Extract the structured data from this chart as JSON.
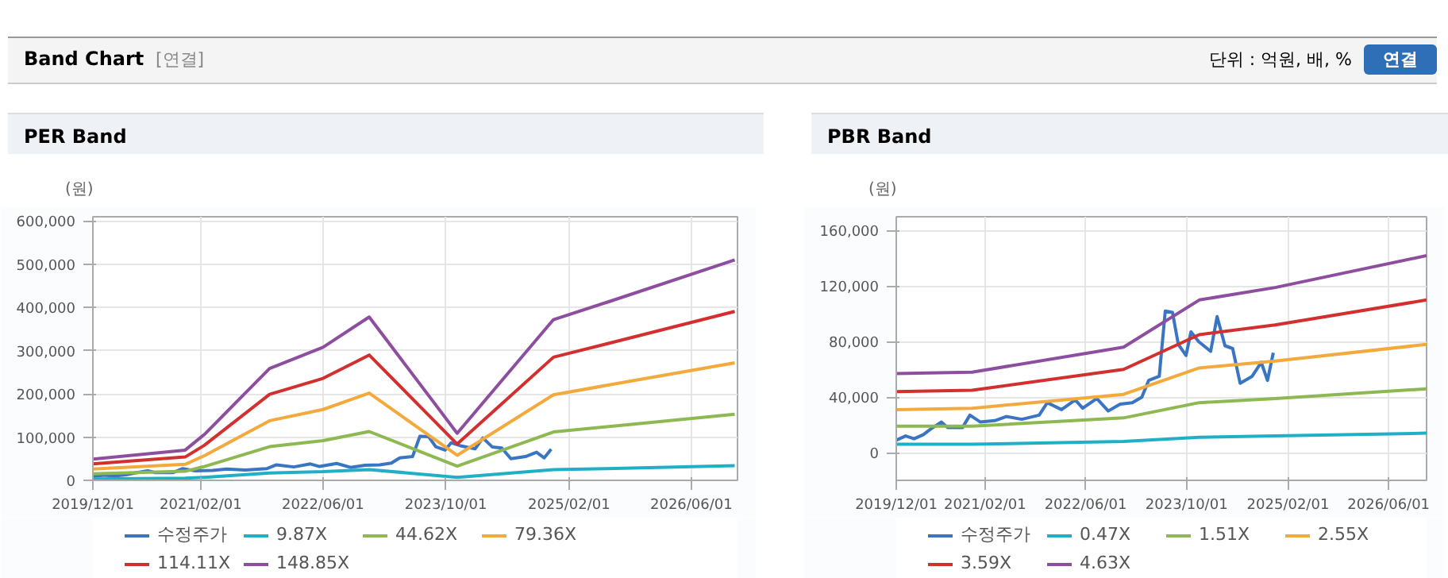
{
  "chart_data": [
    {
      "type": "line",
      "title": "PER Band",
      "ylabel": "(원)",
      "annotations": [
        "Band Chart",
        "[연결]",
        "단위 : 억원, 배, %",
        "연결"
      ],
      "xlim": [
        "2019-12-01",
        "2026-12-01"
      ],
      "ylim": [
        0,
        610000
      ],
      "xticks": [
        {
          "value": "2019-12-01",
          "label": "2019/12/01"
        },
        {
          "value": "2021-02-01",
          "label": "2021/02/01"
        },
        {
          "value": "2022-06-01",
          "label": "2022/06/01"
        },
        {
          "value": "2023-10-01",
          "label": "2023/10/01"
        },
        {
          "value": "2025-02-01",
          "label": "2025/02/01"
        },
        {
          "value": "2026-06-01",
          "label": "2026/06/01"
        }
      ],
      "yticks": [
        0,
        {
          "value": 100000,
          "label": "100,000"
        },
        {
          "value": 200000,
          "label": "200,000"
        },
        {
          "value": 300000,
          "label": "300,000"
        },
        {
          "value": 400000,
          "label": "400,000"
        },
        {
          "value": 500000,
          "label": "500,000"
        },
        {
          "value": 600000,
          "label": "600,000"
        }
      ],
      "grid": true,
      "legend": "bottom",
      "marker": "none",
      "line_style": "solid",
      "series": [
        {
          "name": "수정주가",
          "color": "#3a75c4",
          "x": [
            "2019-12-01",
            "2020-01-15",
            "2020-02-25",
            "2020-04-10",
            "2020-05-15",
            "2020-07-05",
            "2020-08-05",
            "2020-10-15",
            "2020-11-20",
            "2021-01-10",
            "2021-03-20",
            "2021-05-15",
            "2021-07-28",
            "2021-10-20",
            "2021-11-28",
            "2022-02-05",
            "2022-04-12",
            "2022-05-18",
            "2022-07-25",
            "2022-09-18",
            "2022-11-15",
            "2023-01-12",
            "2023-02-27",
            "2023-04-01",
            "2023-05-22",
            "2023-06-20",
            "2023-07-25",
            "2023-08-22",
            "2023-09-28",
            "2023-10-22",
            "2023-11-28",
            "2024-01-25",
            "2024-02-25",
            "2024-04-03",
            "2024-05-10",
            "2024-06-15",
            "2024-08-12",
            "2024-09-25",
            "2024-10-25",
            "2024-11-22"
          ],
          "values": [
            9000,
            12000,
            10000,
            13000,
            17000,
            22000,
            18000,
            18000,
            27000,
            22000,
            23000,
            26000,
            24000,
            27000,
            36000,
            31000,
            38000,
            32000,
            39000,
            30000,
            35000,
            36000,
            40000,
            52000,
            55000,
            102000,
            101000,
            78000,
            70000,
            87000,
            80000,
            73000,
            98000,
            77000,
            75000,
            50000,
            55000,
            65000,
            52000,
            72000
          ]
        },
        {
          "name": "9.87X",
          "color": "#1fb0c6",
          "x": [
            "2019-12-01",
            "2020-12-01",
            "2021-02-15",
            "2021-11-01",
            "2022-06-01",
            "2022-12-01",
            "2023-11-15",
            "2024-12-01",
            "2025-07-01",
            "2026-11-20"
          ],
          "values": [
            3000,
            5000,
            7000,
            17000,
            20000,
            25000,
            7000,
            25000,
            27000,
            34000
          ]
        },
        {
          "name": "44.62X",
          "color": "#8db852",
          "x": [
            "2019-12-01",
            "2020-12-01",
            "2021-02-15",
            "2021-11-01",
            "2022-06-01",
            "2022-12-01",
            "2023-11-15",
            "2024-12-01",
            "2025-07-01",
            "2026-11-20"
          ],
          "values": [
            15000,
            21000,
            32000,
            78000,
            92000,
            113000,
            33000,
            112000,
            124000,
            153000
          ]
        },
        {
          "name": "79.36X",
          "color": "#f3a93b",
          "x": [
            "2019-12-01",
            "2020-12-01",
            "2021-02-15",
            "2021-11-01",
            "2022-06-01",
            "2022-12-01",
            "2023-11-15",
            "2024-12-01",
            "2025-07-01",
            "2026-11-20"
          ],
          "values": [
            26000,
            37000,
            57000,
            138000,
            164000,
            202000,
            58000,
            198000,
            220000,
            272000
          ]
        },
        {
          "name": "114.11X",
          "color": "#d32f2f",
          "x": [
            "2019-12-01",
            "2020-12-01",
            "2021-02-15",
            "2021-11-01",
            "2022-06-01",
            "2022-12-01",
            "2023-11-15",
            "2024-12-01",
            "2025-07-01",
            "2026-11-20"
          ],
          "values": [
            38000,
            54000,
            81000,
            199000,
            236000,
            290000,
            84000,
            285000,
            316000,
            391000
          ]
        },
        {
          "name": "148.85X",
          "color": "#8e4ea0",
          "x": [
            "2019-12-01",
            "2020-12-01",
            "2021-02-15",
            "2021-11-01",
            "2022-06-01",
            "2022-12-01",
            "2023-11-15",
            "2024-12-01",
            "2025-07-01",
            "2026-11-20"
          ],
          "values": [
            49000,
            70000,
            106000,
            259000,
            308000,
            378000,
            109000,
            372000,
            412000,
            510000
          ]
        }
      ]
    },
    {
      "type": "line",
      "title": "PBR Band",
      "ylabel": "(원)",
      "xlim": [
        "2019-12-01",
        "2026-12-01"
      ],
      "ylim": [
        -20000,
        170000
      ],
      "xticks": [
        {
          "value": "2019-12-01",
          "label": "2019/12/01"
        },
        {
          "value": "2021-02-01",
          "label": "2021/02/01"
        },
        {
          "value": "2022-06-01",
          "label": "2022/06/01"
        },
        {
          "value": "2023-10-01",
          "label": "2023/10/01"
        },
        {
          "value": "2025-02-01",
          "label": "2025/02/01"
        },
        {
          "value": "2026-06-01",
          "label": "2026/06/01"
        }
      ],
      "yticks": [
        0,
        {
          "value": 40000,
          "label": "40,000"
        },
        {
          "value": 80000,
          "label": "80,000"
        },
        {
          "value": 120000,
          "label": "120,000"
        },
        {
          "value": 160000,
          "label": "160,000"
        }
      ],
      "grid": true,
      "legend": "bottom",
      "marker": "none",
      "line_style": "solid",
      "series": [
        {
          "name": "수정주가",
          "color": "#3a75c4",
          "x": [
            "2019-12-01",
            "2020-01-15",
            "2020-02-25",
            "2020-04-10",
            "2020-05-15",
            "2020-07-05",
            "2020-08-05",
            "2020-10-15",
            "2020-11-20",
            "2021-01-10",
            "2021-03-20",
            "2021-05-15",
            "2021-07-28",
            "2021-10-20",
            "2021-11-28",
            "2022-02-05",
            "2022-04-12",
            "2022-05-18",
            "2022-07-25",
            "2022-09-18",
            "2022-11-15",
            "2023-01-12",
            "2023-02-27",
            "2023-04-01",
            "2023-05-22",
            "2023-06-20",
            "2023-07-25",
            "2023-08-22",
            "2023-09-28",
            "2023-10-22",
            "2023-11-28",
            "2024-01-25",
            "2024-02-25",
            "2024-04-03",
            "2024-05-10",
            "2024-06-15",
            "2024-08-12",
            "2024-09-25",
            "2024-10-25",
            "2024-11-22"
          ],
          "values": [
            9000,
            12000,
            10000,
            13000,
            17000,
            22000,
            18000,
            18000,
            27000,
            22000,
            23000,
            26000,
            24000,
            27000,
            36000,
            31000,
            38000,
            32000,
            39000,
            30000,
            35000,
            36000,
            40000,
            52000,
            55000,
            102000,
            101000,
            78000,
            70000,
            87000,
            80000,
            73000,
            98000,
            77000,
            75000,
            50000,
            55000,
            65000,
            52000,
            72000
          ]
        },
        {
          "name": "0.47X",
          "color": "#1fb0c6",
          "x": [
            "2019-12-01",
            "2020-12-01",
            "2022-12-01",
            "2023-12-01",
            "2024-12-01",
            "2026-12-01"
          ],
          "values": [
            6000,
            6000,
            8000,
            11000,
            12000,
            14000
          ]
        },
        {
          "name": "1.51X",
          "color": "#8db852",
          "x": [
            "2019-12-01",
            "2020-12-01",
            "2022-12-01",
            "2023-12-01",
            "2024-12-01",
            "2026-12-01"
          ],
          "values": [
            19000,
            19000,
            25000,
            36000,
            39000,
            46000
          ]
        },
        {
          "name": "2.55X",
          "color": "#f3a93b",
          "x": [
            "2019-12-01",
            "2020-12-01",
            "2022-12-01",
            "2023-12-01",
            "2024-12-01",
            "2026-12-01"
          ],
          "values": [
            31000,
            32000,
            42000,
            61000,
            66000,
            78000
          ]
        },
        {
          "name": "3.59X",
          "color": "#d32f2f",
          "x": [
            "2019-12-01",
            "2020-12-01",
            "2022-12-01",
            "2023-12-01",
            "2024-12-01",
            "2026-12-01"
          ],
          "values": [
            44000,
            45000,
            60000,
            85000,
            92000,
            110000
          ]
        },
        {
          "name": "4.63X",
          "color": "#8e4ea0",
          "x": [
            "2019-12-01",
            "2020-12-01",
            "2022-12-01",
            "2023-12-01",
            "2024-12-01",
            "2026-12-01"
          ],
          "values": [
            57000,
            58000,
            76000,
            110000,
            119000,
            142000
          ]
        }
      ]
    }
  ]
}
